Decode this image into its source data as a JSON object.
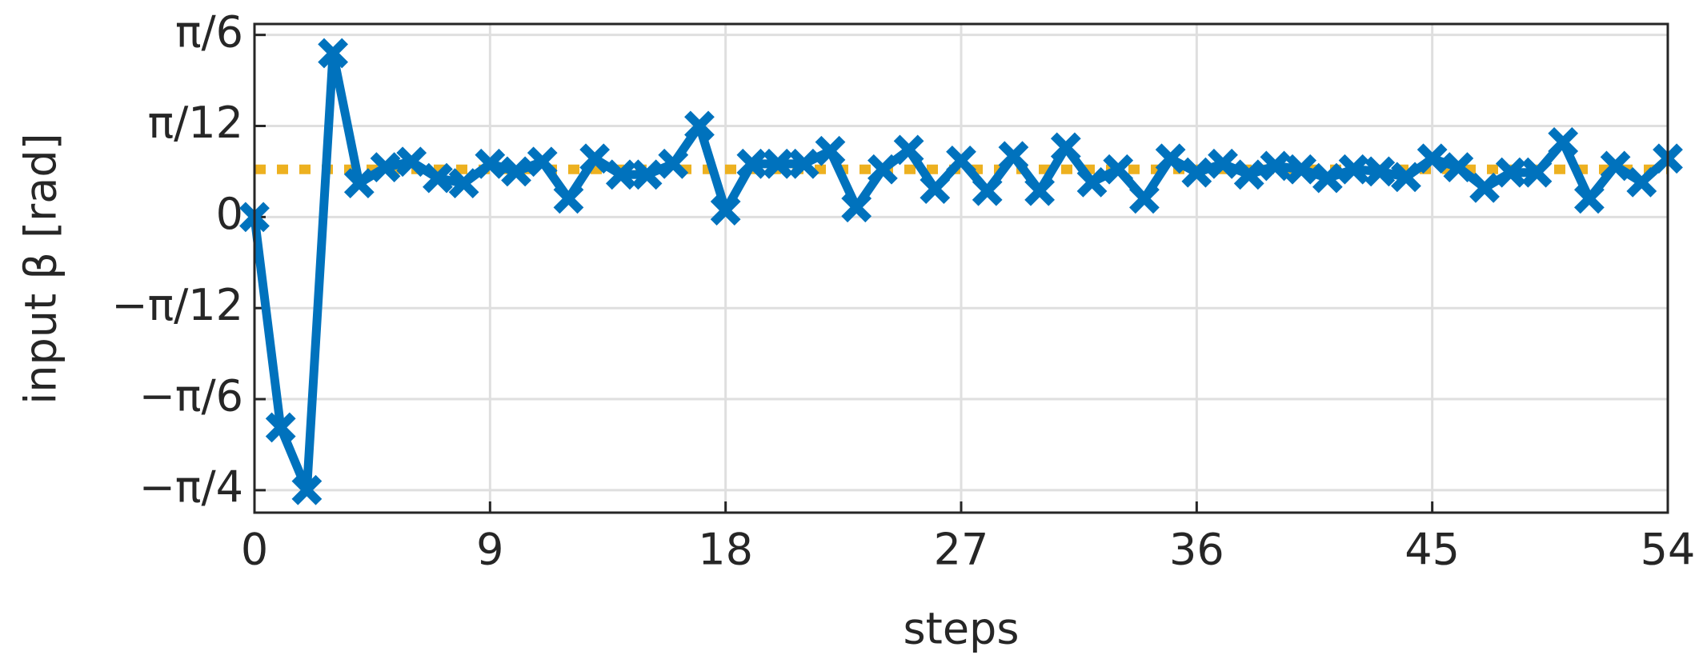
{
  "chart_data": {
    "type": "line",
    "xlabel": "steps",
    "ylabel": "input β [rad]",
    "xlim": [
      0,
      54
    ],
    "xticks": [
      0,
      9,
      18,
      27,
      36,
      45,
      54
    ],
    "ylim": [
      -0.85,
      0.555
    ],
    "yticks": [
      {
        "value": -0.7854,
        "label": "−π/4"
      },
      {
        "value": -0.5236,
        "label": "−π/6"
      },
      {
        "value": -0.2618,
        "label": "−π/12"
      },
      0,
      {
        "value": 0.2618,
        "label": "π/12"
      },
      {
        "value": 0.5236,
        "label": "π/6"
      }
    ],
    "grid": true,
    "series": [
      {
        "color": "#0072bd",
        "marker": "x",
        "x": [
          0,
          1,
          2,
          3,
          4,
          5,
          6,
          7,
          8,
          9,
          10,
          11,
          12,
          13,
          14,
          15,
          16,
          17,
          18,
          19,
          20,
          21,
          22,
          23,
          24,
          25,
          26,
          27,
          28,
          29,
          30,
          31,
          32,
          33,
          34,
          35,
          36,
          37,
          38,
          39,
          40,
          41,
          42,
          43,
          44,
          45,
          46,
          47,
          48,
          49,
          50,
          51,
          52,
          53,
          54
        ],
        "values": [
          0.0,
          -0.605,
          -0.785,
          0.471,
          0.097,
          0.143,
          0.159,
          0.112,
          0.097,
          0.153,
          0.131,
          0.159,
          0.053,
          0.168,
          0.122,
          0.122,
          0.153,
          0.262,
          0.019,
          0.153,
          0.153,
          0.153,
          0.19,
          0.028,
          0.137,
          0.193,
          0.081,
          0.162,
          0.075,
          0.175,
          0.075,
          0.2,
          0.1,
          0.137,
          0.053,
          0.168,
          0.128,
          0.153,
          0.122,
          0.147,
          0.137,
          0.112,
          0.137,
          0.131,
          0.115,
          0.168,
          0.143,
          0.084,
          0.128,
          0.128,
          0.215,
          0.053,
          0.147,
          0.1,
          0.168
        ]
      },
      {
        "color": "#edb120",
        "dash": "dotted",
        "x": [
          0,
          54
        ],
        "values": [
          0.137,
          0.137
        ]
      }
    ]
  }
}
